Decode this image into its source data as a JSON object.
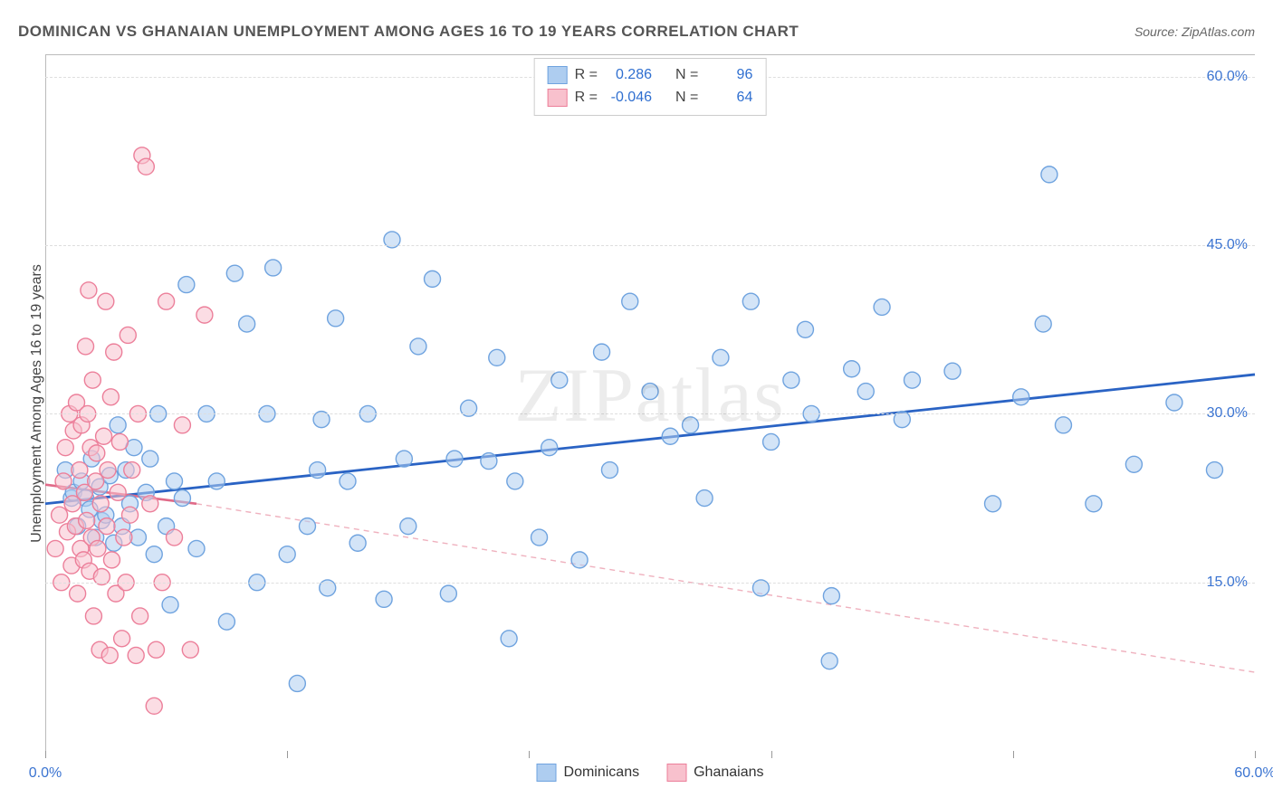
{
  "title": "DOMINICAN VS GHANAIAN UNEMPLOYMENT AMONG AGES 16 TO 19 YEARS CORRELATION CHART",
  "source_label": "Source: ZipAtlas.com",
  "watermark": "ZIPatlas",
  "yaxis_title": "Unemployment Among Ages 16 to 19 years",
  "chart": {
    "type": "scatter",
    "xlim": [
      0,
      60
    ],
    "ylim": [
      0,
      62
    ],
    "xtick_positions": [
      0,
      12,
      24,
      36,
      48,
      60
    ],
    "xtick_labels": [
      "0.0%",
      "",
      "",
      "",
      "",
      "60.0%"
    ],
    "ytick_positions": [
      15,
      30,
      45,
      60
    ],
    "ytick_labels": [
      "15.0%",
      "30.0%",
      "45.0%",
      "60.0%"
    ],
    "background_color": "#ffffff",
    "grid_color": "#dedede",
    "frame_color": "#bbbbbb",
    "marker_radius": 9,
    "marker_stroke_width": 1.4,
    "series": [
      {
        "key": "dominicans",
        "label": "Dominicans",
        "fill": "#aecdf0",
        "stroke": "#6fa3df",
        "fill_opacity": 0.55,
        "R": "0.286",
        "N": "96",
        "trend": {
          "x1": 0,
          "y1": 22.0,
          "x2": 60,
          "y2": 33.5,
          "color": "#2a63c4",
          "width": 2.8,
          "dash": ""
        },
        "points": [
          [
            1,
            25
          ],
          [
            1.3,
            22.5
          ],
          [
            1.4,
            23
          ],
          [
            1.6,
            20
          ],
          [
            1.8,
            24
          ],
          [
            2,
            22.5
          ],
          [
            2.2,
            21.5
          ],
          [
            2.3,
            26
          ],
          [
            2.5,
            19
          ],
          [
            2.7,
            23.5
          ],
          [
            2.8,
            20.5
          ],
          [
            3,
            21
          ],
          [
            3.2,
            24.5
          ],
          [
            3.4,
            18.5
          ],
          [
            3.6,
            29
          ],
          [
            3.8,
            20
          ],
          [
            4,
            25
          ],
          [
            4.2,
            22
          ],
          [
            4.4,
            27
          ],
          [
            4.6,
            19
          ],
          [
            5,
            23
          ],
          [
            5.2,
            26
          ],
          [
            5.4,
            17.5
          ],
          [
            5.6,
            30
          ],
          [
            6,
            20
          ],
          [
            6.2,
            13
          ],
          [
            6.4,
            24
          ],
          [
            6.8,
            22.5
          ],
          [
            7,
            41.5
          ],
          [
            7.5,
            18
          ],
          [
            8,
            30
          ],
          [
            8.5,
            24
          ],
          [
            9,
            11.5
          ],
          [
            9.4,
            42.5
          ],
          [
            10,
            38
          ],
          [
            10.5,
            15
          ],
          [
            11,
            30
          ],
          [
            11.3,
            43
          ],
          [
            12,
            17.5
          ],
          [
            12.5,
            6
          ],
          [
            13,
            20
          ],
          [
            13.5,
            25
          ],
          [
            13.7,
            29.5
          ],
          [
            14,
            14.5
          ],
          [
            14.4,
            38.5
          ],
          [
            15,
            24
          ],
          [
            15.5,
            18.5
          ],
          [
            16,
            30
          ],
          [
            16.8,
            13.5
          ],
          [
            17.2,
            45.5
          ],
          [
            17.8,
            26
          ],
          [
            18,
            20
          ],
          [
            18.5,
            36
          ],
          [
            19.2,
            42
          ],
          [
            20,
            14
          ],
          [
            20.3,
            26
          ],
          [
            21,
            30.5
          ],
          [
            22,
            25.8
          ],
          [
            22.4,
            35
          ],
          [
            23,
            10
          ],
          [
            23.3,
            24
          ],
          [
            24.5,
            19
          ],
          [
            25,
            27
          ],
          [
            25.5,
            33
          ],
          [
            26.5,
            17
          ],
          [
            27.6,
            35.5
          ],
          [
            28,
            25
          ],
          [
            29,
            40
          ],
          [
            30,
            32
          ],
          [
            31,
            28
          ],
          [
            32,
            29
          ],
          [
            32.7,
            22.5
          ],
          [
            33.5,
            35
          ],
          [
            35,
            40
          ],
          [
            35.5,
            14.5
          ],
          [
            36,
            27.5
          ],
          [
            37,
            33
          ],
          [
            37.7,
            37.5
          ],
          [
            38,
            30
          ],
          [
            38.9,
            8
          ],
          [
            39,
            13.8
          ],
          [
            40,
            34
          ],
          [
            40.7,
            32
          ],
          [
            41.5,
            39.5
          ],
          [
            42.5,
            29.5
          ],
          [
            43,
            33
          ],
          [
            45,
            33.8
          ],
          [
            47,
            22
          ],
          [
            48.4,
            31.5
          ],
          [
            49.5,
            38
          ],
          [
            49.8,
            51.3
          ],
          [
            50.5,
            29
          ],
          [
            52,
            22
          ],
          [
            54,
            25.5
          ],
          [
            56,
            31
          ],
          [
            58,
            25
          ]
        ]
      },
      {
        "key": "ghanaians",
        "label": "Ghanaians",
        "fill": "#f8c1cd",
        "stroke": "#ec7f9a",
        "fill_opacity": 0.55,
        "R": "-0.046",
        "N": "64",
        "trend_solid": {
          "x1": 0,
          "y1": 23.7,
          "x2": 7.5,
          "y2": 22.0,
          "color": "#e06a88",
          "width": 2.6,
          "dash": ""
        },
        "trend_dash": {
          "x1": 7.5,
          "y1": 22.0,
          "x2": 60,
          "y2": 7.0,
          "color": "#efb1be",
          "width": 1.4,
          "dash": "6 5"
        },
        "points": [
          [
            0.5,
            18
          ],
          [
            0.7,
            21
          ],
          [
            0.8,
            15
          ],
          [
            0.9,
            24
          ],
          [
            1,
            27
          ],
          [
            1.1,
            19.5
          ],
          [
            1.2,
            30
          ],
          [
            1.3,
            16.5
          ],
          [
            1.35,
            22
          ],
          [
            1.4,
            28.5
          ],
          [
            1.5,
            20
          ],
          [
            1.55,
            31
          ],
          [
            1.6,
            14
          ],
          [
            1.7,
            25
          ],
          [
            1.75,
            18
          ],
          [
            1.8,
            29
          ],
          [
            1.9,
            17
          ],
          [
            1.95,
            23
          ],
          [
            2,
            36
          ],
          [
            2.05,
            20.5
          ],
          [
            2.1,
            30
          ],
          [
            2.2,
            16
          ],
          [
            2.25,
            27
          ],
          [
            2.3,
            19
          ],
          [
            2.35,
            33
          ],
          [
            2.4,
            12
          ],
          [
            2.5,
            24
          ],
          [
            2.55,
            26.5
          ],
          [
            2.6,
            18
          ],
          [
            2.7,
            9
          ],
          [
            2.75,
            22
          ],
          [
            2.8,
            15.5
          ],
          [
            2.9,
            28
          ],
          [
            3,
            40
          ],
          [
            3.05,
            20
          ],
          [
            3.1,
            25
          ],
          [
            3.2,
            8.5
          ],
          [
            3.25,
            31.5
          ],
          [
            3.3,
            17
          ],
          [
            3.4,
            35.5
          ],
          [
            3.5,
            14
          ],
          [
            3.6,
            23
          ],
          [
            3.7,
            27.5
          ],
          [
            3.8,
            10
          ],
          [
            3.9,
            19
          ],
          [
            4,
            15
          ],
          [
            4.1,
            37
          ],
          [
            4.2,
            21
          ],
          [
            4.3,
            25
          ],
          [
            4.5,
            8.5
          ],
          [
            4.6,
            30
          ],
          [
            4.7,
            12
          ],
          [
            4.8,
            53
          ],
          [
            5,
            52
          ],
          [
            5.2,
            22
          ],
          [
            5.5,
            9
          ],
          [
            5.8,
            15
          ],
          [
            6,
            40
          ],
          [
            6.4,
            19
          ],
          [
            6.8,
            29
          ],
          [
            7.2,
            9
          ],
          [
            7.9,
            38.8
          ],
          [
            5.4,
            4
          ],
          [
            2.15,
            41
          ]
        ]
      }
    ]
  },
  "legend_top": {
    "rows": [
      {
        "swatch_fill": "#aecdf0",
        "swatch_stroke": "#6fa3df",
        "r_label": "R =",
        "r_val": "0.286",
        "n_label": "N =",
        "n_val": "96"
      },
      {
        "swatch_fill": "#f8c1cd",
        "swatch_stroke": "#ec7f9a",
        "r_label": "R =",
        "r_val": "-0.046",
        "n_label": "N =",
        "n_val": "64"
      }
    ]
  },
  "legend_bottom": [
    {
      "label": "Dominicans",
      "fill": "#aecdf0",
      "stroke": "#6fa3df"
    },
    {
      "label": "Ghanaians",
      "fill": "#f8c1cd",
      "stroke": "#ec7f9a"
    }
  ]
}
